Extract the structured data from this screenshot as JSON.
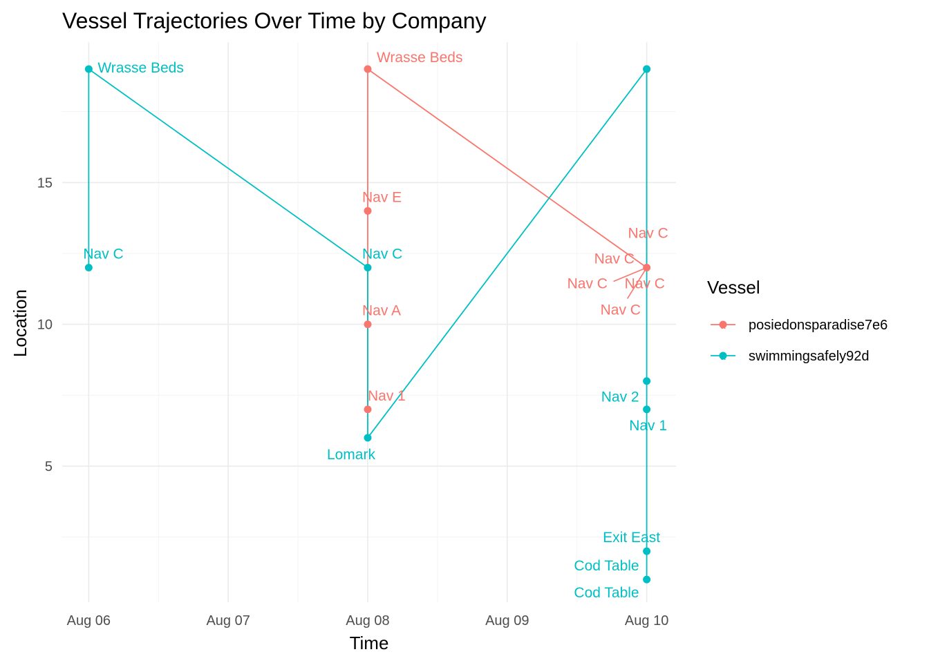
{
  "chart_data": {
    "type": "line",
    "title": "Vessel Trajectories Over Time by Company",
    "xlabel": "Time",
    "ylabel": "Location",
    "x_ticks": [
      "Aug 06",
      "Aug 07",
      "Aug 08",
      "Aug 09",
      "Aug 10"
    ],
    "x_tick_values": [
      0,
      1,
      2,
      3,
      4
    ],
    "y_ticks": [
      5,
      10,
      15
    ],
    "xlim": [
      -0.19,
      4.21
    ],
    "ylim": [
      0.2,
      19.95
    ],
    "legend": {
      "title": "Vessel",
      "position": "right"
    },
    "grid": true,
    "series": [
      {
        "name": "posiedonsparadise7e6",
        "color": "#F8766D",
        "points": [
          {
            "x": 2,
            "y": 7,
            "label": "Nav 1"
          },
          {
            "x": 2,
            "y": 10,
            "label": "Nav A"
          },
          {
            "x": 2,
            "y": 14,
            "label": "Nav E"
          },
          {
            "x": 2,
            "y": 19,
            "label": "Wrasse Beds"
          },
          {
            "x": 4,
            "y": 12,
            "label": "Nav C"
          },
          {
            "x": 4,
            "y": 19,
            "label": ""
          }
        ],
        "extra_labels": [
          "Nav C",
          "Nav C",
          "Nav C",
          "Nav C"
        ]
      },
      {
        "name": "swimmingsafely92d",
        "color": "#00BFC4",
        "points": [
          {
            "x": 0,
            "y": 12,
            "label": "Nav C"
          },
          {
            "x": 0,
            "y": 19,
            "label": "Wrasse Beds"
          },
          {
            "x": 2,
            "y": 12,
            "label": "Nav C"
          },
          {
            "x": 2,
            "y": 6,
            "label": "Lomark"
          },
          {
            "x": 4,
            "y": 19,
            "label": ""
          },
          {
            "x": 4,
            "y": 8,
            "label": "Nav 2"
          },
          {
            "x": 4,
            "y": 7,
            "label": "Nav 1"
          },
          {
            "x": 4,
            "y": 2,
            "label": "Exit East"
          },
          {
            "x": 4,
            "y": 1,
            "label": "Cod Table"
          }
        ],
        "extra_labels": [
          "Cod Table"
        ]
      }
    ]
  }
}
